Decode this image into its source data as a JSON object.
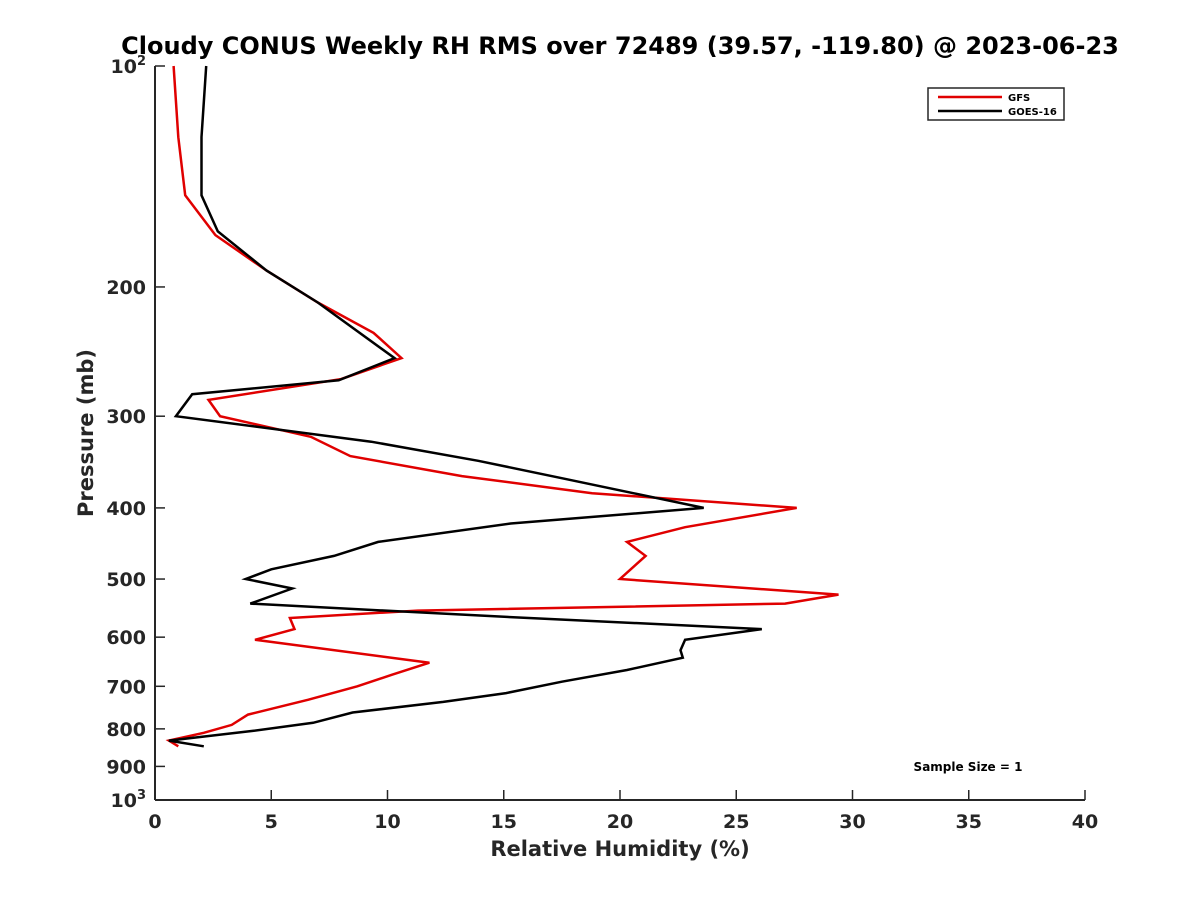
{
  "chart_data": {
    "type": "line",
    "title": "Cloudy CONUS Weekly RH RMS over 72489 (39.57, -119.80) @ 2023-06-23",
    "xlabel": "Relative Humidity (%)",
    "ylabel": "Pressure (mb)",
    "xlim": [
      0,
      40
    ],
    "ylim": [
      100,
      1000
    ],
    "y_scale": "log",
    "y_reversed": true,
    "x_ticks": [
      0,
      5,
      10,
      15,
      20,
      25,
      30,
      35,
      40
    ],
    "x_tick_labels": [
      "0",
      "5",
      "10",
      "15",
      "20",
      "25",
      "30",
      "35",
      "40"
    ],
    "y_ticks": [
      {
        "value": 200,
        "label": "200"
      },
      {
        "value": 300,
        "label": "300"
      },
      {
        "value": 400,
        "label": "400"
      },
      {
        "value": 500,
        "label": "500"
      },
      {
        "value": 600,
        "label": "600"
      },
      {
        "value": 700,
        "label": "700"
      },
      {
        "value": 800,
        "label": "800"
      },
      {
        "value": 900,
        "label": "900"
      }
    ],
    "y_tick_power_labels": [
      {
        "value": 100,
        "base": "10",
        "exp": "2"
      },
      {
        "value": 1000,
        "base": "10",
        "exp": "3"
      }
    ],
    "grid": false,
    "legend_position": "top-right",
    "series": [
      {
        "name": "GFS",
        "color": "#e00000",
        "points": [
          [
            0.8,
            100
          ],
          [
            1.0,
            125
          ],
          [
            1.3,
            150
          ],
          [
            2.6,
            170
          ],
          [
            4.8,
            190
          ],
          [
            7.0,
            210
          ],
          [
            9.4,
            231
          ],
          [
            10.6,
            250
          ],
          [
            8.0,
            267
          ],
          [
            2.3,
            285
          ],
          [
            2.8,
            300
          ],
          [
            6.7,
            320
          ],
          [
            8.4,
            340
          ],
          [
            13.2,
            362
          ],
          [
            18.8,
            382
          ],
          [
            27.6,
            400
          ],
          [
            22.8,
            425
          ],
          [
            20.3,
            445
          ],
          [
            21.1,
            465
          ],
          [
            20.0,
            500
          ],
          [
            29.4,
            525
          ],
          [
            27.1,
            540
          ],
          [
            11.3,
            552
          ],
          [
            5.8,
            565
          ],
          [
            6.0,
            585
          ],
          [
            4.3,
            605
          ],
          [
            11.8,
            650
          ],
          [
            10.2,
            675
          ],
          [
            8.7,
            700
          ],
          [
            6.6,
            730
          ],
          [
            4.0,
            765
          ],
          [
            3.3,
            790
          ],
          [
            2.1,
            810
          ],
          [
            0.6,
            830
          ],
          [
            1.0,
            845
          ]
        ]
      },
      {
        "name": "GOES-16",
        "color": "#000000",
        "points": [
          [
            2.2,
            100
          ],
          [
            2.0,
            125
          ],
          [
            2.0,
            150
          ],
          [
            2.7,
            168
          ],
          [
            4.8,
            190
          ],
          [
            7.0,
            210
          ],
          [
            10.3,
            250
          ],
          [
            7.9,
            268
          ],
          [
            1.6,
            280
          ],
          [
            0.9,
            300
          ],
          [
            9.3,
            325
          ],
          [
            13.9,
            345
          ],
          [
            17.6,
            365
          ],
          [
            23.6,
            400
          ],
          [
            15.3,
            420
          ],
          [
            9.6,
            445
          ],
          [
            7.7,
            465
          ],
          [
            5.0,
            485
          ],
          [
            3.9,
            500
          ],
          [
            5.9,
            515
          ],
          [
            4.1,
            540
          ],
          [
            14.6,
            562
          ],
          [
            26.1,
            585
          ],
          [
            22.8,
            605
          ],
          [
            22.6,
            625
          ],
          [
            22.7,
            640
          ],
          [
            20.3,
            665
          ],
          [
            17.5,
            690
          ],
          [
            15.1,
            715
          ],
          [
            12.4,
            735
          ],
          [
            8.5,
            760
          ],
          [
            6.8,
            785
          ],
          [
            4.2,
            805
          ],
          [
            0.6,
            830
          ],
          [
            2.1,
            845
          ]
        ]
      }
    ],
    "annotations": [
      "Sample Size = 1"
    ]
  }
}
